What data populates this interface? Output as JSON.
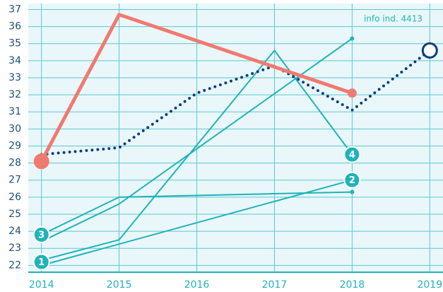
{
  "chart_data": {
    "type": "line",
    "annotation": "info ind. 4413",
    "xlim": [
      2013.83,
      2019.17
    ],
    "xticks": [
      2014,
      2015,
      2016,
      2017,
      2018,
      2019
    ],
    "ylim": [
      21.6,
      37.35
    ],
    "yticks": [
      22,
      23,
      24,
      25,
      26,
      27,
      28,
      29,
      30,
      31,
      32,
      33,
      34,
      35,
      36,
      37
    ],
    "grid": true,
    "series": [
      {
        "x": [
          2014,
          2015,
          2017,
          2018
        ],
        "values": [
          22.3,
          23.5,
          34.6,
          28.5
        ],
        "color": "#1fb3b9",
        "style": "solid",
        "width": 2
      },
      {
        "x": [
          2014,
          2018
        ],
        "values": [
          22.0,
          27.0
        ],
        "color": "#1fb3b9",
        "style": "solid",
        "width": 2
      },
      {
        "x": [
          2014,
          2015,
          2018
        ],
        "values": [
          23.8,
          26.0,
          26.3
        ],
        "color": "#1fb3b9",
        "style": "solid",
        "width": 2,
        "end_marker": "small"
      },
      {
        "x": [
          2014,
          2015,
          2018
        ],
        "values": [
          23.4,
          25.6,
          35.3
        ],
        "color": "#1fb3b9",
        "style": "solid",
        "width": 2,
        "end_marker": "small"
      },
      {
        "x": [
          2014,
          2015,
          2016,
          2017,
          2018,
          2019
        ],
        "values": [
          28.5,
          28.9,
          32.1,
          33.7,
          31.1,
          34.6
        ],
        "color": "#0b3f7e",
        "style": "dotted",
        "width": 4,
        "end_marker": "open"
      },
      {
        "x": [
          2014,
          2015,
          2018
        ],
        "values": [
          28.1,
          36.7,
          32.1
        ],
        "color": "#f07a70",
        "style": "solid",
        "width": 5,
        "start_marker": "large",
        "end_marker": "medium"
      }
    ],
    "badges": [
      {
        "label": "1",
        "x": 2014,
        "y": 22.2
      },
      {
        "label": "3",
        "x": 2014,
        "y": 23.8
      },
      {
        "label": "2",
        "x": 2018,
        "y": 27.0
      },
      {
        "label": "4",
        "x": 2018,
        "y": 28.5
      }
    ]
  }
}
